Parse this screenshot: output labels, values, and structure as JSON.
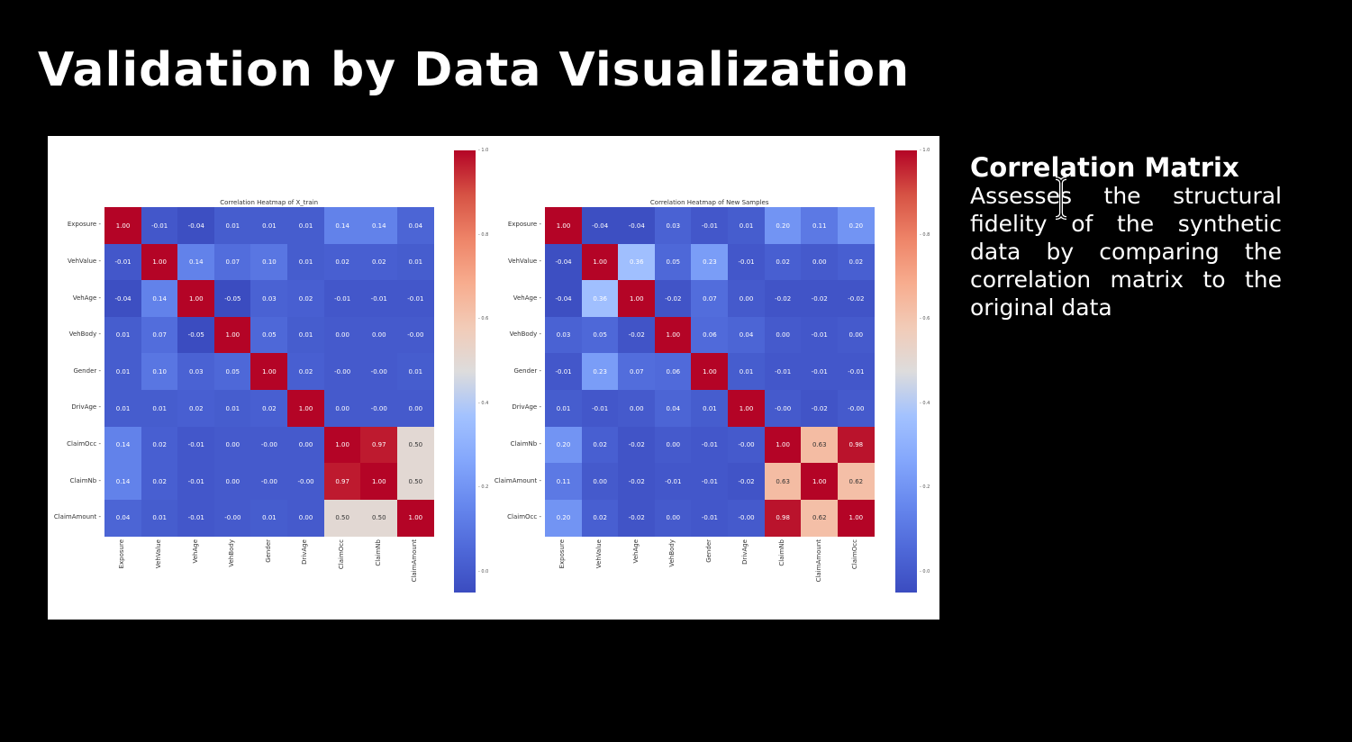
{
  "slide": {
    "title": "Validation by Data Visualization"
  },
  "side_text": {
    "heading": "Correlation Matrix",
    "body": "Assesses the structural fidelity of the synthetic data by comparing the correlation matrix to the original data"
  },
  "colors": {
    "background": "#000000",
    "panel": "#ffffff",
    "colormap": "coolwarm"
  },
  "chart_data": [
    {
      "type": "heatmap",
      "title": "Correlation Heatmap of X_train",
      "colorbar_ticks": [
        "0.0",
        "0.2",
        "0.4",
        "0.6",
        "0.8",
        "1.0"
      ],
      "colorbar_range": [
        -0.05,
        1.0
      ],
      "rows": [
        "Exposure",
        "VehValue",
        "VehAge",
        "VehBody",
        "Gender",
        "DrivAge",
        "ClaimOcc",
        "ClaimNb",
        "ClaimAmount"
      ],
      "cols": [
        "Exposure",
        "VehValue",
        "VehAge",
        "VehBody",
        "Gender",
        "DrivAge",
        "ClaimOcc",
        "ClaimNb",
        "ClaimAmount"
      ],
      "values": [
        [
          "1.00",
          "-0.01",
          "-0.04",
          "0.01",
          "0.01",
          "0.01",
          "0.14",
          "0.14",
          "0.04"
        ],
        [
          "-0.01",
          "1.00",
          "0.14",
          "0.07",
          "0.10",
          "0.01",
          "0.02",
          "0.02",
          "0.01"
        ],
        [
          "-0.04",
          "0.14",
          "1.00",
          "-0.05",
          "0.03",
          "0.02",
          "-0.01",
          "-0.01",
          "-0.01"
        ],
        [
          "0.01",
          "0.07",
          "-0.05",
          "1.00",
          "0.05",
          "0.01",
          "0.00",
          "0.00",
          "-0.00"
        ],
        [
          "0.01",
          "0.10",
          "0.03",
          "0.05",
          "1.00",
          "0.02",
          "-0.00",
          "-0.00",
          "0.01"
        ],
        [
          "0.01",
          "0.01",
          "0.02",
          "0.01",
          "0.02",
          "1.00",
          "0.00",
          "-0.00",
          "0.00"
        ],
        [
          "0.14",
          "0.02",
          "-0.01",
          "0.00",
          "-0.00",
          "0.00",
          "1.00",
          "0.97",
          "0.50"
        ],
        [
          "0.14",
          "0.02",
          "-0.01",
          "0.00",
          "-0.00",
          "-0.00",
          "0.97",
          "1.00",
          "0.50"
        ],
        [
          "0.04",
          "0.01",
          "-0.01",
          "-0.00",
          "0.01",
          "0.00",
          "0.50",
          "0.50",
          "1.00"
        ]
      ]
    },
    {
      "type": "heatmap",
      "title": "Correlation Heatmap of New Samples",
      "colorbar_ticks": [
        "0.0",
        "0.2",
        "0.4",
        "0.6",
        "0.8",
        "1.0"
      ],
      "colorbar_range": [
        -0.05,
        1.0
      ],
      "rows": [
        "Exposure",
        "VehValue",
        "VehAge",
        "VehBody",
        "Gender",
        "DrivAge",
        "ClaimNb",
        "ClaimAmount",
        "ClaimOcc"
      ],
      "cols": [
        "Exposure",
        "VehValue",
        "VehAge",
        "VehBody",
        "Gender",
        "DrivAge",
        "ClaimNb",
        "ClaimAmount",
        "ClaimOcc"
      ],
      "values": [
        [
          "1.00",
          "-0.04",
          "-0.04",
          "0.03",
          "-0.01",
          "0.01",
          "0.20",
          "0.11",
          "0.20"
        ],
        [
          "-0.04",
          "1.00",
          "0.36",
          "0.05",
          "0.23",
          "-0.01",
          "0.02",
          "0.00",
          "0.02"
        ],
        [
          "-0.04",
          "0.36",
          "1.00",
          "-0.02",
          "0.07",
          "0.00",
          "-0.02",
          "-0.02",
          "-0.02"
        ],
        [
          "0.03",
          "0.05",
          "-0.02",
          "1.00",
          "0.06",
          "0.04",
          "0.00",
          "-0.01",
          "0.00"
        ],
        [
          "-0.01",
          "0.23",
          "0.07",
          "0.06",
          "1.00",
          "0.01",
          "-0.01",
          "-0.01",
          "-0.01"
        ],
        [
          "0.01",
          "-0.01",
          "0.00",
          "0.04",
          "0.01",
          "1.00",
          "-0.00",
          "-0.02",
          "-0.00"
        ],
        [
          "0.20",
          "0.02",
          "-0.02",
          "0.00",
          "-0.01",
          "-0.00",
          "1.00",
          "0.63",
          "0.98"
        ],
        [
          "0.11",
          "0.00",
          "-0.02",
          "-0.01",
          "-0.01",
          "-0.02",
          "0.63",
          "1.00",
          "0.62"
        ],
        [
          "0.20",
          "0.02",
          "-0.02",
          "0.00",
          "-0.01",
          "-0.00",
          "0.98",
          "0.62",
          "1.00"
        ]
      ]
    }
  ]
}
